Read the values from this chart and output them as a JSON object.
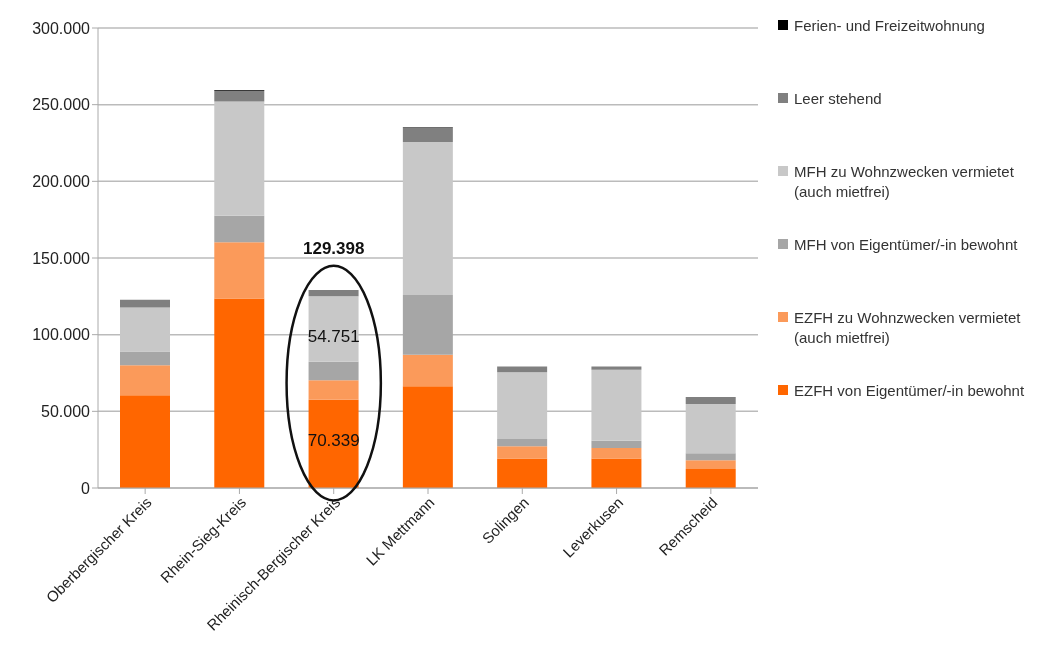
{
  "chart_data": {
    "type": "bar",
    "stacked": true,
    "categories": [
      "Oberbergischer Kreis",
      "Rhein-Sieg-Kreis",
      "Rheinisch-Bergischer Kreis",
      "LK Mettmann",
      "Solingen",
      "Leverkusen",
      "Remscheid"
    ],
    "series": [
      {
        "name": "EZFH von Eigentümer/-in bewohnt",
        "color": "#ff6600",
        "values": [
          60500,
          123600,
          57500,
          66300,
          19300,
          19300,
          12400
        ]
      },
      {
        "name": "EZFH zu Wohnzwecken vermietet (auch mietfrei)",
        "color": "#fb9a5a",
        "values": [
          19500,
          36700,
          12839,
          20600,
          8000,
          6800,
          5700
        ]
      },
      {
        "name": "MFH von Eigentümer/-in bewohnt",
        "color": "#a6a6a6",
        "values": [
          9000,
          17200,
          12000,
          39000,
          4600,
          4700,
          4600
        ]
      },
      {
        "name": "MFH zu Wohnzwecken vermietet (auch mietfrei)",
        "color": "#c8c8c8",
        "values": [
          28700,
          74500,
          42751,
          99800,
          43600,
          46300,
          32100
        ]
      },
      {
        "name": "Leer stehend",
        "color": "#808080",
        "values": [
          5000,
          7000,
          4000,
          9200,
          3800,
          2200,
          4600
        ]
      },
      {
        "name": "Ferien- und Freizeitwohnung",
        "color": "#000000",
        "values": [
          null,
          500,
          null,
          400,
          null,
          null,
          null
        ]
      }
    ],
    "ylim": [
      0,
      300000
    ],
    "yticks": [
      {
        "value": 0,
        "label": "0"
      },
      {
        "value": 50000,
        "label": "50.000"
      },
      {
        "value": 100000,
        "label": "100.000"
      },
      {
        "value": 150000,
        "label": "150.000"
      },
      {
        "value": 200000,
        "label": "200.000"
      },
      {
        "value": 250000,
        "label": "250.000"
      },
      {
        "value": 300000,
        "label": "300.000"
      }
    ],
    "grid": "y",
    "legend": "right",
    "annotations": [
      {
        "text": "129.398",
        "x": "Rheinisch-Bergischer Kreis",
        "y": 129398
      },
      "54.751",
      "70.339"
    ]
  }
}
